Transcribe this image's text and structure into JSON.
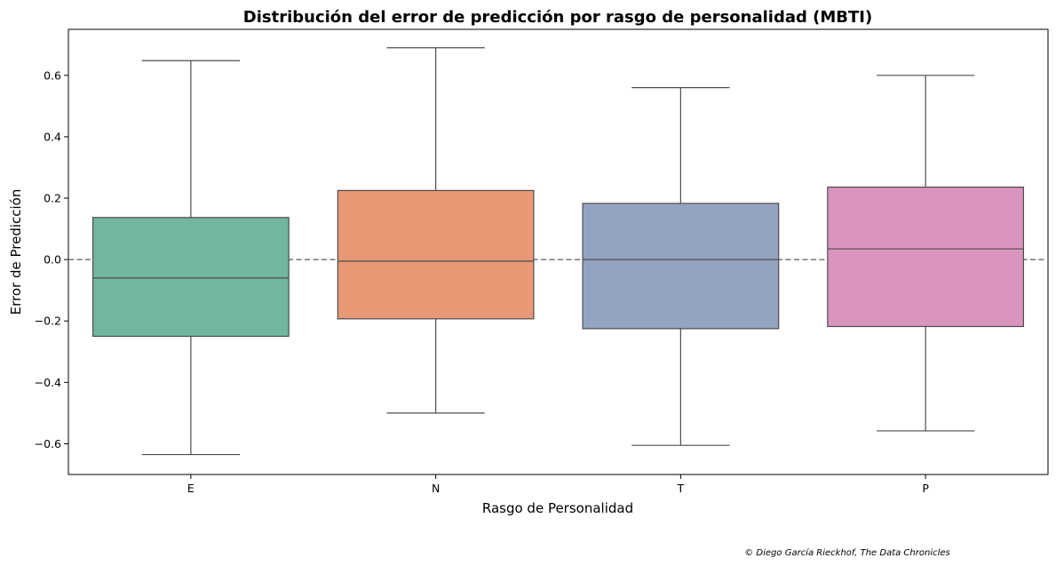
{
  "chart_data": {
    "type": "box",
    "title": "Distribución del error de predicción por rasgo de personalidad (MBTI)",
    "xlabel": "Rasgo de Personalidad",
    "ylabel": "Error de Predicción",
    "ylim": [
      -0.7,
      0.75
    ],
    "yticks": [
      -0.6,
      -0.4,
      -0.2,
      0.0,
      0.2,
      0.4,
      0.6
    ],
    "ytick_labels": [
      "−0.6",
      "−0.4",
      "−0.2",
      "0.0",
      "0.2",
      "0.4",
      "0.6"
    ],
    "reference_line": {
      "y": 0.0,
      "style": "dashed",
      "color": "#808080"
    },
    "grid": false,
    "categories": [
      "E",
      "N",
      "T",
      "P"
    ],
    "boxes": [
      {
        "name": "E",
        "whisker_low": -0.635,
        "q1": -0.25,
        "median": -0.06,
        "q3": 0.137,
        "whisker_high": 0.648,
        "color": "#72b5a0"
      },
      {
        "name": "N",
        "whisker_low": -0.5,
        "q1": -0.193,
        "median": -0.005,
        "q3": 0.225,
        "whisker_high": 0.69,
        "color": "#e99876"
      },
      {
        "name": "T",
        "whisker_low": -0.605,
        "q1": -0.225,
        "median": 0.0,
        "q3": 0.183,
        "whisker_high": 0.56,
        "color": "#95a3c3"
      },
      {
        "name": "P",
        "whisker_low": -0.558,
        "q1": -0.218,
        "median": 0.035,
        "q3": 0.236,
        "whisker_high": 0.6,
        "color": "#da95bf"
      }
    ]
  },
  "credit": "© Diego García Rieckhof, The Data Chronicles"
}
